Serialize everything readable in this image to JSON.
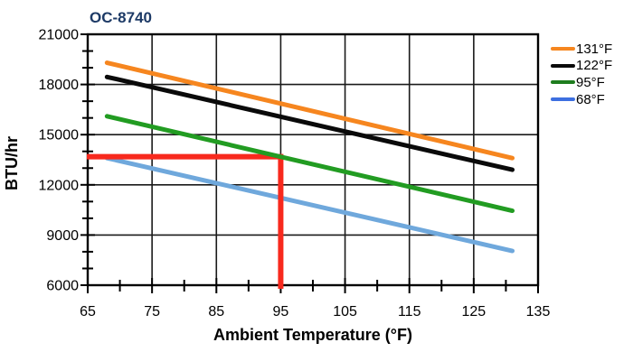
{
  "chart_data": {
    "type": "line",
    "title": "OC-8740",
    "title_color": "#1D3A66",
    "xlabel": "Ambient Temperature (°F)",
    "ylabel": "BTU/hr",
    "xlim": [
      65,
      135
    ],
    "ylim": [
      6000,
      21000
    ],
    "x_major_ticks": [
      65,
      75,
      85,
      95,
      105,
      115,
      125,
      135
    ],
    "x_minor_tick_step": 5,
    "y_major_ticks": [
      6000,
      9000,
      12000,
      15000,
      18000,
      21000
    ],
    "y_minor_tick_step": 1000,
    "grid": "major-both",
    "legend_position": "right-outside",
    "series": [
      {
        "name": "131°F",
        "color": "#F6861F",
        "legend_color": "#F6861F",
        "x": [
          68,
          131
        ],
        "y": [
          19300,
          13600
        ]
      },
      {
        "name": "122°F",
        "color": "#0A0A0A",
        "legend_color": "#0A0A0A",
        "x": [
          68,
          131
        ],
        "y": [
          18450,
          12900
        ]
      },
      {
        "name": "95°F",
        "color": "#229C22",
        "legend_color": "#1E7D1E",
        "x": [
          68,
          131
        ],
        "y": [
          16100,
          10450
        ]
      },
      {
        "name": "68°F",
        "color": "#6FA8DC",
        "legend_color": "#3D6FE0",
        "x": [
          68,
          131
        ],
        "y": [
          13600,
          8050
        ]
      }
    ],
    "indicator": {
      "color": "#F8291D",
      "x": 95,
      "y": 13680,
      "note": "red reference line from y-axis to the 95°F curve at 95°F ambient, then down to x-axis"
    }
  }
}
